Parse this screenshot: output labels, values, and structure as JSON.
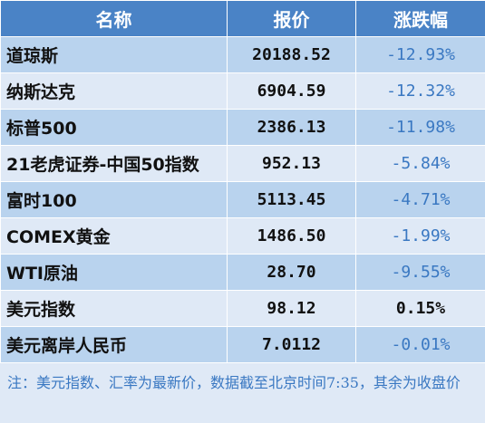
{
  "headers": [
    "名称",
    "报价",
    "涨跌幅"
  ],
  "rows": [
    {
      "name": "道琼斯",
      "price": "20188.52",
      "change": "-12.93%"
    },
    {
      "name": "纳斯达克",
      "price": "6904.59",
      "change": "-12.32%"
    },
    {
      "name": "标普500",
      "price": "2386.13",
      "change": "-11.98%"
    },
    {
      "name": "21老虎证券-中国50指数",
      "price": "952.13",
      "change": "-5.84%"
    },
    {
      "name": "富时100",
      "price": "5113.45",
      "change": "-4.71%"
    },
    {
      "name": "COMEX黄金",
      "price": "1486.50",
      "change": "-1.99%"
    },
    {
      "name": "WTI原油",
      "price": "28.70",
      "change": "-9.55%"
    },
    {
      "name": "美元指数",
      "price": "98.12",
      "change": "0.15%"
    },
    {
      "name": "美元离岸人民币",
      "price": "7.0112",
      "change": "-0.01%"
    }
  ],
  "note": "注：美元指数、汇率为最新价，数据截至北京时间7:35，其余为收盘价",
  "colors": {
    "header_bg": "#4a83c6",
    "row_dark": "#b9d3ee",
    "row_light": "#dfe9f6",
    "negative_text": "#3a78c2"
  }
}
